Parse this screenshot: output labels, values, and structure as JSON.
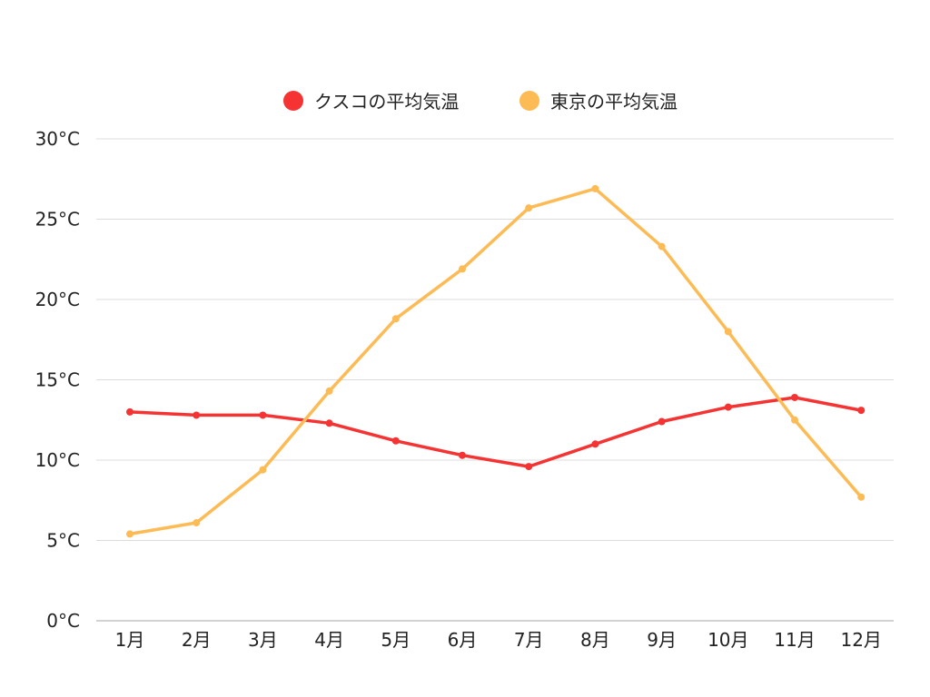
{
  "chart_data": {
    "type": "line",
    "categories": [
      "1月",
      "2月",
      "3月",
      "4月",
      "5月",
      "6月",
      "7月",
      "8月",
      "9月",
      "10月",
      "11月",
      "12月"
    ],
    "series": [
      {
        "name": "クスコの平均気温",
        "color": "#f53333",
        "values": [
          13.0,
          12.8,
          12.8,
          12.3,
          11.2,
          10.3,
          9.6,
          11.0,
          12.4,
          13.3,
          13.9,
          13.1
        ]
      },
      {
        "name": "東京の平均気温",
        "color": "#fdbb55",
        "values": [
          5.4,
          6.1,
          9.4,
          14.3,
          18.8,
          21.9,
          25.7,
          26.9,
          23.3,
          18.0,
          12.5,
          7.7
        ]
      }
    ],
    "ylim": [
      0,
      30
    ],
    "yticks": [
      "0°C",
      "5°C",
      "10°C",
      "15°C",
      "20°C",
      "25°C",
      "30°C"
    ],
    "ytick_values": [
      0,
      5,
      10,
      15,
      20,
      25,
      30
    ],
    "grid": true,
    "legend_position": "top-center",
    "xlabel": "",
    "ylabel": ""
  }
}
